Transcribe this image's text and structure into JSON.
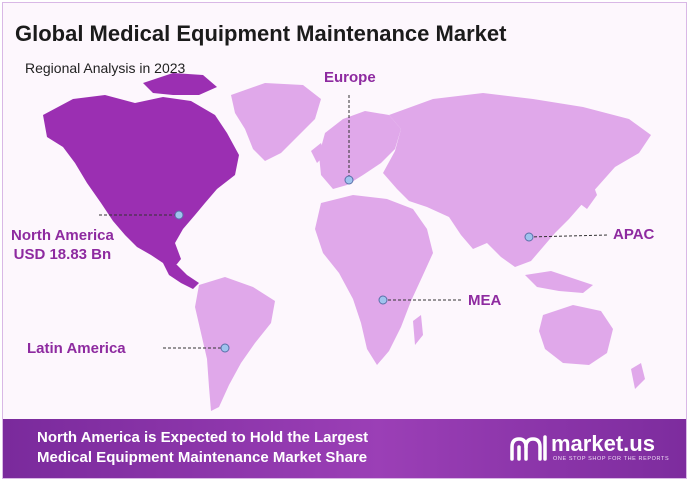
{
  "header": {
    "title": "Global Medical Equipment Maintenance Market",
    "subtitle": "Regional Analysis in 2023"
  },
  "regions": {
    "europe": "Europe",
    "north_america": "North America",
    "north_america_value": "USD 18.83 Bn",
    "apac": "APAC",
    "mea": "MEA",
    "latin_america": "Latin America"
  },
  "footer": {
    "line1": "North America is Expected to Hold the Largest",
    "line2": "Medical Equipment Maintenance Market Share"
  },
  "logo": {
    "name": "market.us",
    "tagline": "ONE STOP SHOP FOR THE REPORTS"
  },
  "colors": {
    "highlight_region": "#9b2fb2",
    "other_regions": "#e0a8ea",
    "footer": "#8a35a8",
    "label": "#8e2aa0"
  }
}
